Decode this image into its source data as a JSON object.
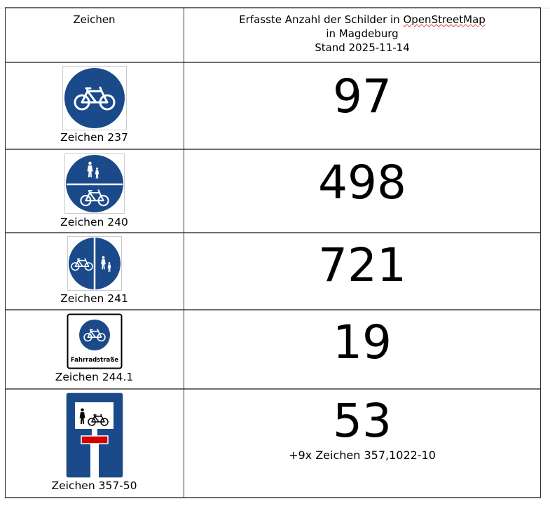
{
  "header": {
    "col1": "Zeichen",
    "col2_line1_a": "Erfasste Anzahl der Schilder in ",
    "col2_line1_b": "OpenStreetMap",
    "col2_line2": "in Magdeburg",
    "col2_line3": "Stand 2025-11-14"
  },
  "rows": [
    {
      "label": "Zeichen 237",
      "count": "97"
    },
    {
      "label": "Zeichen 240",
      "count": "498"
    },
    {
      "label": "Zeichen 241",
      "count": "721"
    },
    {
      "label": "Zeichen 244.1",
      "count": "19",
      "sign_text": "Fahrradstraße"
    },
    {
      "label": "Zeichen 357-50",
      "count": "53",
      "note": "+9x Zeichen 357,1022-10"
    }
  ],
  "colors": {
    "sign_blue": "#1a4a8a",
    "sign_red": "#d40000",
    "border": "#6e6e6e"
  }
}
